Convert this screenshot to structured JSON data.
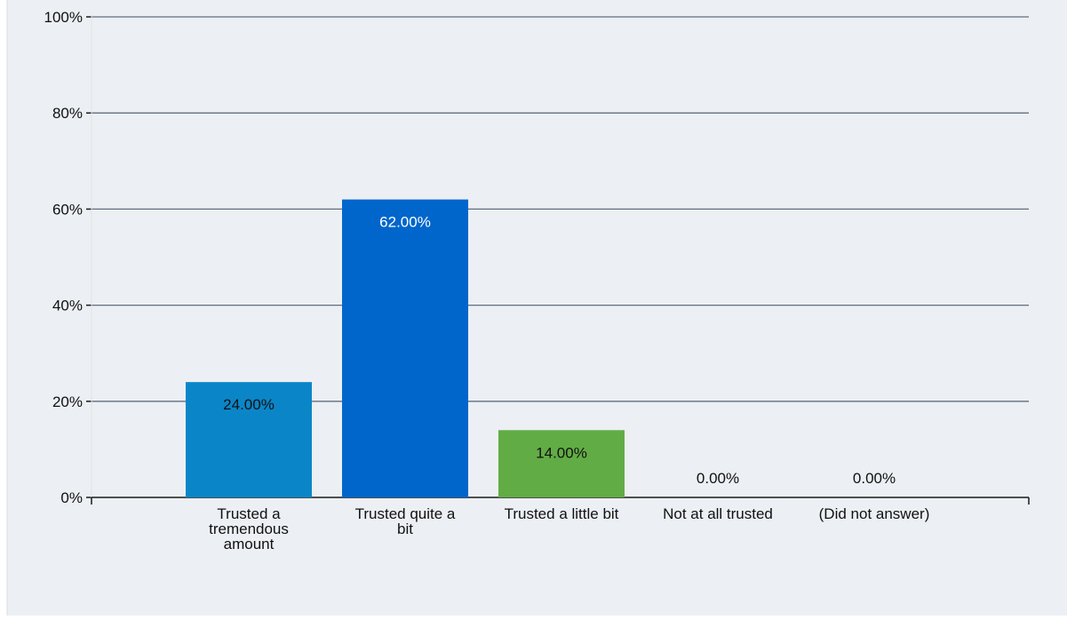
{
  "chart_data": {
    "type": "bar",
    "categories": [
      [
        "Trusted a",
        "tremendous",
        "amount"
      ],
      [
        "Trusted quite a",
        "bit"
      ],
      [
        "Trusted a little bit"
      ],
      [
        "Not at all trusted"
      ],
      [
        "(Did not answer)"
      ]
    ],
    "values": [
      24,
      62,
      14,
      0,
      0
    ],
    "data_labels": [
      "24.00%",
      "62.00%",
      "14.00%",
      "0.00%",
      "0.00%"
    ],
    "bar_colors": [
      "#0a86c8",
      "#0066cc",
      "#62ac45",
      "#0a86c8",
      "#0a86c8"
    ],
    "ylim": [
      0,
      100
    ],
    "yticks": [
      0,
      20,
      40,
      60,
      80,
      100
    ],
    "ytick_labels": [
      "0%",
      "20%",
      "40%",
      "60%",
      "80%",
      "100%"
    ],
    "grid": true,
    "legend": false,
    "background": "#eceff3",
    "grid_color": "#5f6f82"
  }
}
